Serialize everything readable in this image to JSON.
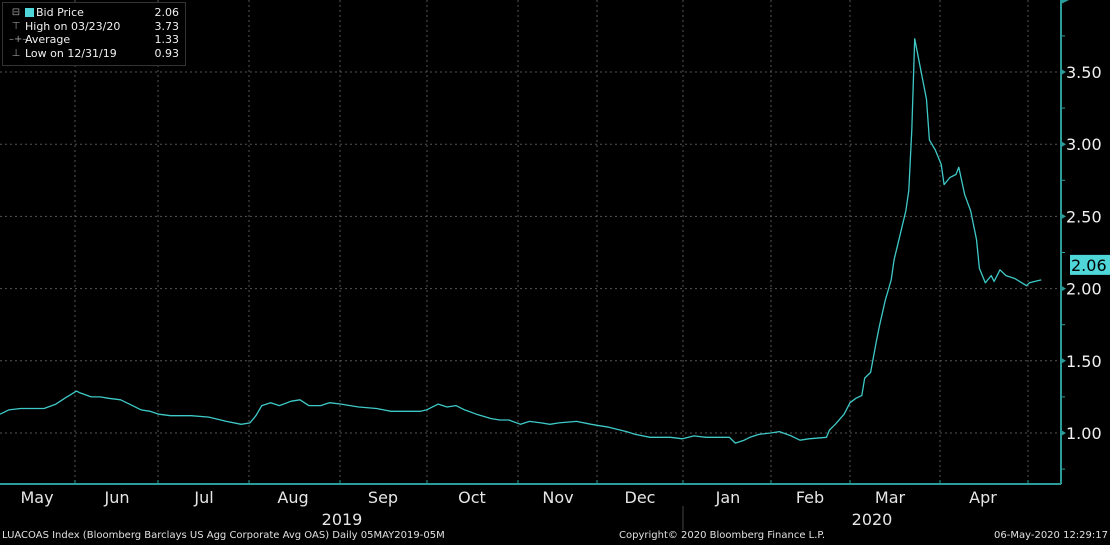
{
  "legend": {
    "items": [
      {
        "icon": "series-swatch-icon",
        "label": "Bid Price",
        "value": "2.06"
      },
      {
        "icon": "high-marker-icon",
        "label": "High on 03/23/20",
        "value": "3.73"
      },
      {
        "icon": "average-marker-icon",
        "label": "Average",
        "value": "1.33"
      },
      {
        "icon": "low-marker-icon",
        "label": "Low on 12/31/19",
        "value": "0.93"
      }
    ]
  },
  "footer": {
    "left": "LUACOAS Index (Bloomberg Barclays US Agg Corporate Avg OAS)  Daily 05MAY2019-05M",
    "center": "Copyright© 2020 Bloomberg Finance L.P.",
    "right": "06-May-2020 12:29:17"
  },
  "colors": {
    "line": "#3ec9c7",
    "axis": "#2a9d9a",
    "label_bg": "#4fd6d8"
  },
  "chart_data": {
    "type": "line",
    "title": "",
    "series_name": "Bid Price",
    "last_value_label": "2.06",
    "ylim": [
      0.64,
      3.99
    ],
    "yticks": [
      "1.00",
      "1.50",
      "2.00",
      "2.50",
      "3.00",
      "3.50"
    ],
    "x_unit": "days from start (approx.)",
    "month_labels": [
      "May",
      "Jun",
      "Jul",
      "Aug",
      "Sep",
      "Oct",
      "Nov",
      "Dec",
      "Jan",
      "Feb",
      "Mar",
      "Apr"
    ],
    "year_labels": [
      "2019",
      "2020"
    ],
    "grid": true,
    "points": [
      [
        0,
        1.13
      ],
      [
        3,
        1.16
      ],
      [
        7,
        1.17
      ],
      [
        10,
        1.17
      ],
      [
        15,
        1.17
      ],
      [
        19,
        1.2
      ],
      [
        22,
        1.24
      ],
      [
        26,
        1.29
      ],
      [
        27,
        1.28
      ],
      [
        31,
        1.25
      ],
      [
        34,
        1.25
      ],
      [
        37,
        1.24
      ],
      [
        41,
        1.23
      ],
      [
        44,
        1.2
      ],
      [
        48,
        1.16
      ],
      [
        51,
        1.15
      ],
      [
        54,
        1.13
      ],
      [
        58,
        1.12
      ],
      [
        65,
        1.12
      ],
      [
        71,
        1.11
      ],
      [
        77,
        1.08
      ],
      [
        82,
        1.06
      ],
      [
        85,
        1.07
      ],
      [
        87,
        1.12
      ],
      [
        89,
        1.19
      ],
      [
        92,
        1.21
      ],
      [
        95,
        1.19
      ],
      [
        99,
        1.22
      ],
      [
        102,
        1.23
      ],
      [
        105,
        1.19
      ],
      [
        109,
        1.19
      ],
      [
        112,
        1.21
      ],
      [
        116,
        1.2
      ],
      [
        119,
        1.19
      ],
      [
        122,
        1.18
      ],
      [
        128,
        1.17
      ],
      [
        133,
        1.15
      ],
      [
        136,
        1.15
      ],
      [
        143,
        1.15
      ],
      [
        145,
        1.16
      ],
      [
        149,
        1.2
      ],
      [
        152,
        1.18
      ],
      [
        155,
        1.19
      ],
      [
        158,
        1.16
      ],
      [
        162,
        1.13
      ],
      [
        167,
        1.1
      ],
      [
        170,
        1.09
      ],
      [
        173,
        1.09
      ],
      [
        177,
        1.06
      ],
      [
        180,
        1.08
      ],
      [
        184,
        1.07
      ],
      [
        187,
        1.06
      ],
      [
        190,
        1.07
      ],
      [
        196,
        1.08
      ],
      [
        201,
        1.06
      ],
      [
        204,
        1.05
      ],
      [
        207,
        1.04
      ],
      [
        213,
        1.01
      ],
      [
        216,
        0.99
      ],
      [
        221,
        0.97
      ],
      [
        228,
        0.97
      ],
      [
        232,
        0.96
      ],
      [
        236,
        0.98
      ],
      [
        240,
        0.97
      ],
      [
        243,
        0.97
      ],
      [
        248,
        0.97
      ],
      [
        250,
        0.93
      ],
      [
        253,
        0.95
      ],
      [
        255,
        0.97
      ],
      [
        258,
        0.99
      ],
      [
        262,
        1.0
      ],
      [
        265,
        1.01
      ],
      [
        269,
        0.98
      ],
      [
        272,
        0.95
      ],
      [
        275,
        0.96
      ],
      [
        281,
        0.97
      ],
      [
        282,
        1.02
      ],
      [
        284,
        1.06
      ],
      [
        287,
        1.13
      ],
      [
        289,
        1.21
      ],
      [
        291,
        1.24
      ],
      [
        293,
        1.26
      ],
      [
        294,
        1.38
      ],
      [
        296,
        1.42
      ],
      [
        298,
        1.64
      ],
      [
        299,
        1.74
      ],
      [
        301,
        1.92
      ],
      [
        303,
        2.06
      ],
      [
        304,
        2.2
      ],
      [
        306,
        2.37
      ],
      [
        308,
        2.54
      ],
      [
        309,
        2.68
      ],
      [
        310,
        3.1
      ],
      [
        311,
        3.73
      ],
      [
        315,
        3.31
      ],
      [
        316,
        3.03
      ],
      [
        318,
        2.96
      ],
      [
        320,
        2.86
      ],
      [
        321,
        2.72
      ],
      [
        323,
        2.77
      ],
      [
        325,
        2.79
      ],
      [
        326,
        2.84
      ],
      [
        328,
        2.65
      ],
      [
        330,
        2.54
      ],
      [
        332,
        2.34
      ],
      [
        333,
        2.14
      ],
      [
        335,
        2.04
      ],
      [
        337,
        2.09
      ],
      [
        338,
        2.05
      ],
      [
        340,
        2.13
      ],
      [
        342,
        2.09
      ],
      [
        345,
        2.07
      ],
      [
        349,
        2.02
      ],
      [
        350,
        2.04
      ],
      [
        354,
        2.06
      ]
    ]
  }
}
